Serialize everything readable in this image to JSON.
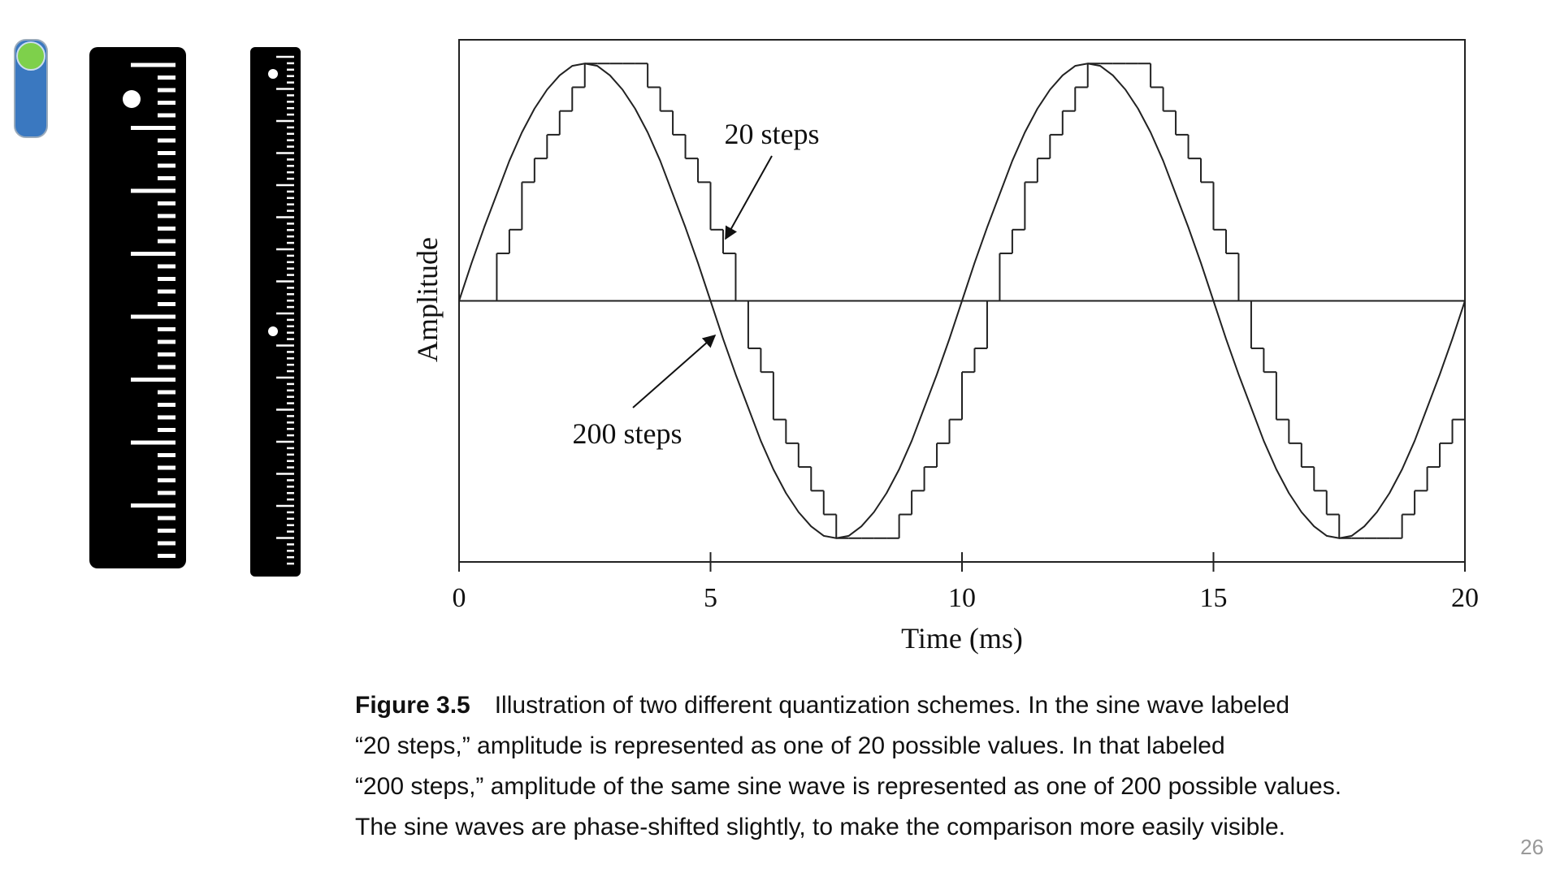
{
  "chart_data": {
    "type": "line",
    "xlabel": "Time (ms)",
    "ylabel": "Amplitude",
    "xlim": [
      0,
      20
    ],
    "ylim": [
      -1.1,
      1.1
    ],
    "xticks": [
      0,
      5,
      10,
      15,
      20
    ],
    "x": [
      0,
      0.25,
      0.5,
      0.75,
      1,
      1.25,
      1.5,
      1.75,
      2,
      2.25,
      2.5,
      2.75,
      3,
      3.25,
      3.5,
      3.75,
      4,
      4.25,
      4.5,
      4.75,
      5,
      5.25,
      5.5,
      5.75,
      6,
      6.25,
      6.5,
      6.75,
      7,
      7.25,
      7.5,
      7.75,
      8,
      8.25,
      8.5,
      8.75,
      9,
      9.25,
      9.5,
      9.75,
      10,
      10.25,
      10.5,
      10.75,
      11,
      11.25,
      11.5,
      11.75,
      12,
      12.25,
      12.5,
      12.75,
      13,
      13.25,
      13.5,
      13.75,
      14,
      14.25,
      14.5,
      14.75,
      15,
      15.25,
      15.5,
      15.75,
      16,
      16.25,
      16.5,
      16.75,
      17,
      17.25,
      17.5,
      17.75,
      18,
      18.25,
      18.5,
      18.75,
      19,
      19.25,
      19.5,
      19.75,
      20
    ],
    "series": [
      {
        "name": "200 steps",
        "color": "#222222",
        "step": false,
        "values": [
          0,
          0.16,
          0.31,
          0.45,
          0.59,
          0.71,
          0.81,
          0.89,
          0.95,
          0.99,
          1,
          0.99,
          0.95,
          0.89,
          0.81,
          0.71,
          0.59,
          0.45,
          0.31,
          0.16,
          0,
          -0.16,
          -0.31,
          -0.45,
          -0.59,
          -0.71,
          -0.81,
          -0.89,
          -0.95,
          -0.99,
          -1,
          -0.99,
          -0.95,
          -0.89,
          -0.81,
          -0.71,
          -0.59,
          -0.45,
          -0.31,
          -0.16,
          0,
          0.16,
          0.31,
          0.45,
          0.59,
          0.71,
          0.81,
          0.89,
          0.95,
          0.99,
          1,
          0.99,
          0.95,
          0.89,
          0.81,
          0.71,
          0.59,
          0.45,
          0.31,
          0.16,
          0,
          -0.16,
          -0.31,
          -0.45,
          -0.59,
          -0.71,
          -0.81,
          -0.89,
          -0.95,
          -0.99,
          -1,
          -0.99,
          -0.95,
          -0.89,
          -0.81,
          -0.71,
          -0.59,
          -0.45,
          -0.31,
          -0.16,
          0
        ]
      },
      {
        "name": "20 steps",
        "color": "#222222",
        "step": true,
        "values": [
          0,
          0,
          0,
          0.2,
          0.3,
          0.5,
          0.6,
          0.7,
          0.8,
          0.9,
          1,
          1,
          1,
          1,
          1,
          0.9,
          0.8,
          0.7,
          0.6,
          0.5,
          0.3,
          0.2,
          0,
          -0.2,
          -0.3,
          -0.5,
          -0.6,
          -0.7,
          -0.8,
          -0.9,
          -1,
          -1,
          -1,
          -1,
          -1,
          -0.9,
          -0.8,
          -0.7,
          -0.6,
          -0.5,
          -0.3,
          -0.2,
          0,
          0.2,
          0.3,
          0.5,
          0.6,
          0.7,
          0.8,
          0.9,
          1,
          1,
          1,
          1,
          1,
          0.9,
          0.8,
          0.7,
          0.6,
          0.5,
          0.3,
          0.2,
          0,
          -0.2,
          -0.3,
          -0.5,
          -0.6,
          -0.7,
          -0.8,
          -0.9,
          -1,
          -1,
          -1,
          -1,
          -1,
          -0.9,
          -0.8,
          -0.7,
          -0.6,
          -0.5,
          -0.3
        ]
      }
    ]
  },
  "caption": {
    "label": "Figure 3.5",
    "lines": [
      "Illustration of two different quantization schemes. In the sine wave labeled",
      "“20 steps,” amplitude is represented as one of 20 possible values. In that labeled",
      "“200 steps,” amplitude of the same sine wave is represented as one of 200 possible values.",
      "The sine waves are phase-shifted slightly, to make the comparison more easily visible."
    ]
  },
  "page_number": "26"
}
